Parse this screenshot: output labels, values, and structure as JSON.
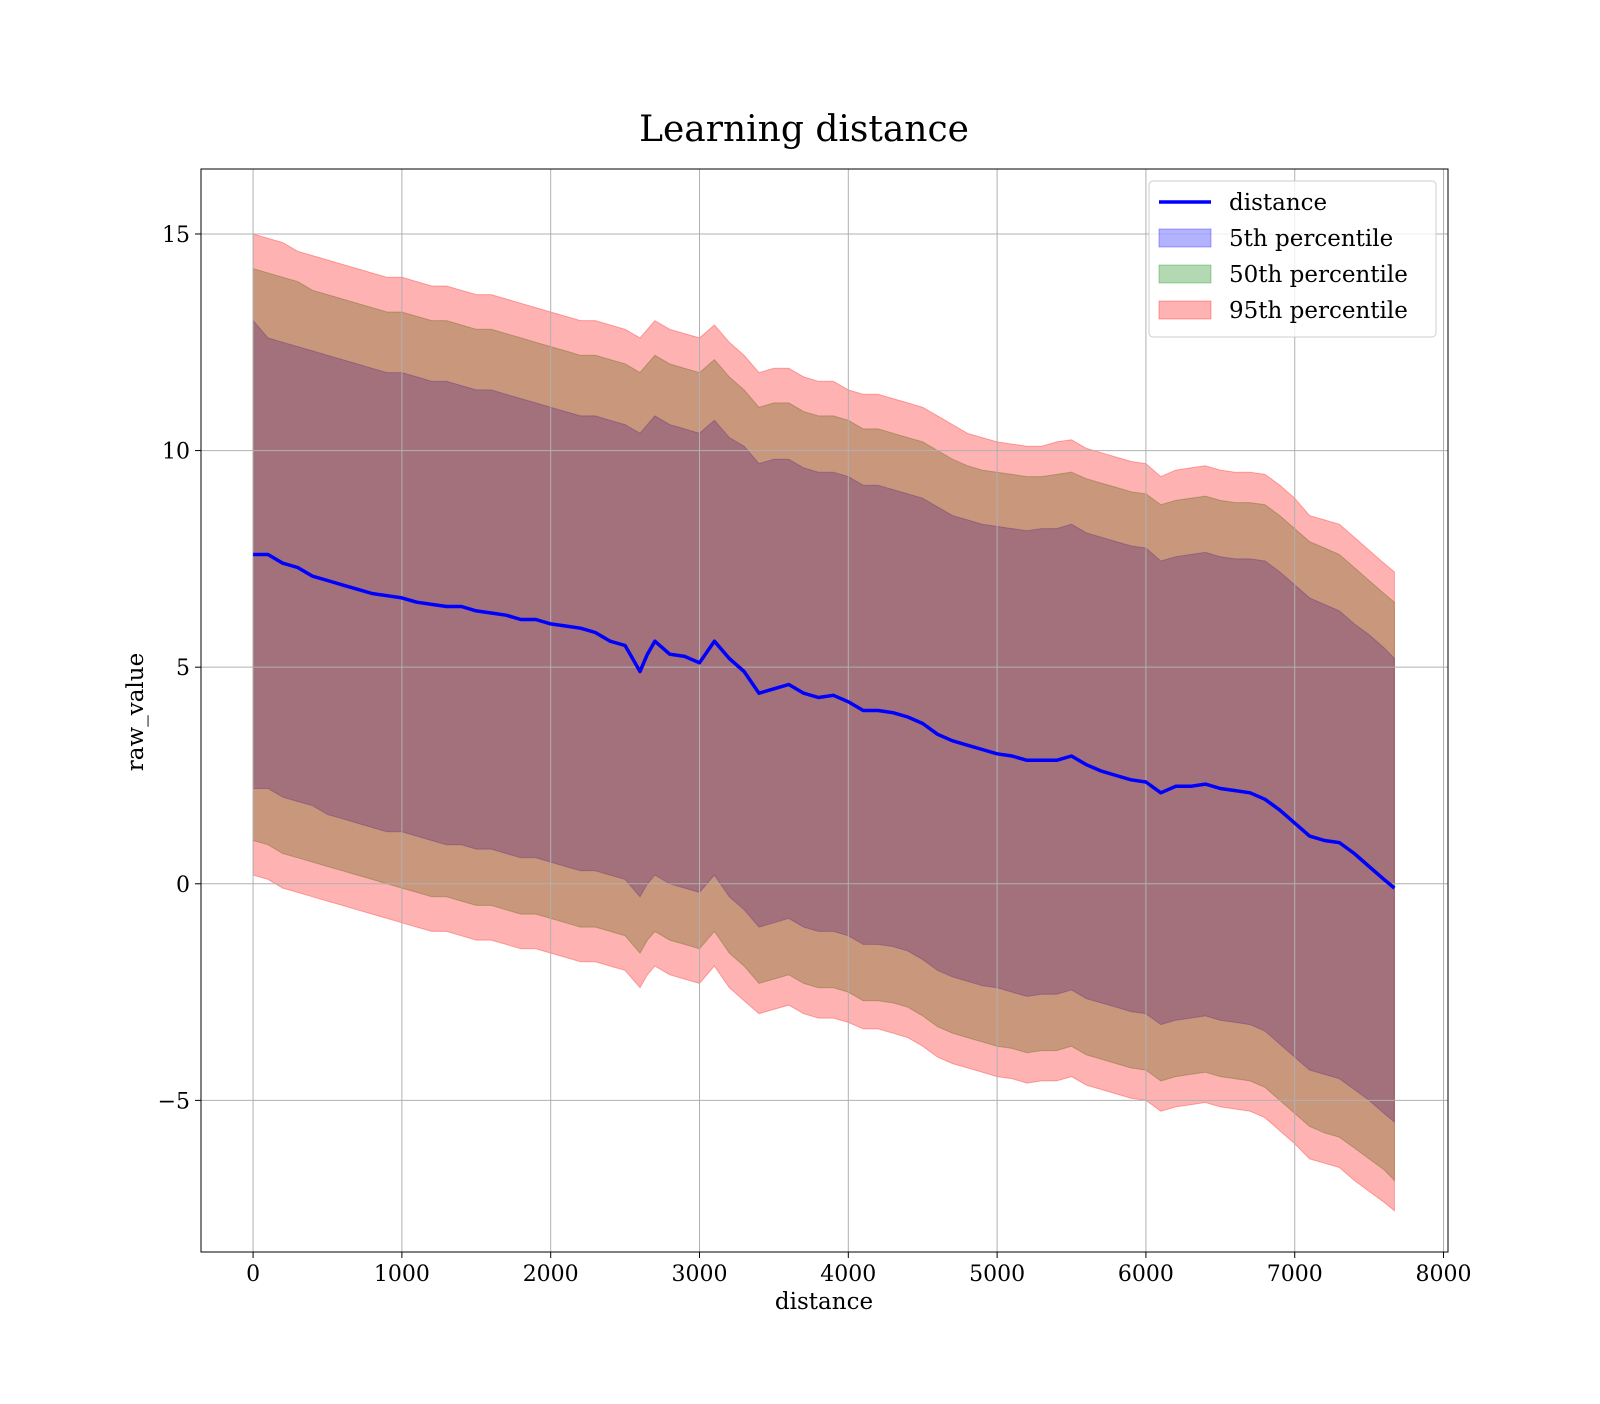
{
  "chart_data": {
    "type": "area",
    "title": "Learning distance",
    "xlabel": "distance",
    "ylabel": "raw_value",
    "xlim": [
      -350,
      8030
    ],
    "ylim": [
      -8.5,
      16.5
    ],
    "grid": true,
    "legend_position": "top-right",
    "x_ticks": [
      0,
      1000,
      2000,
      3000,
      4000,
      5000,
      6000,
      7000,
      8000
    ],
    "x_tick_labels": [
      "0",
      "1000",
      "2000",
      "3000",
      "4000",
      "5000",
      "6000",
      "7000",
      "8000"
    ],
    "y_ticks": [
      -5,
      0,
      5,
      10,
      15
    ],
    "y_tick_labels": [
      "−5",
      "0",
      "5",
      "10",
      "15"
    ],
    "x": [
      0,
      100,
      200,
      300,
      400,
      500,
      600,
      700,
      800,
      900,
      1000,
      1100,
      1200,
      1300,
      1400,
      1500,
      1600,
      1700,
      1800,
      1900,
      2000,
      2100,
      2200,
      2300,
      2400,
      2500,
      2600,
      2650,
      2700,
      2800,
      2900,
      3000,
      3100,
      3200,
      3300,
      3400,
      3500,
      3600,
      3700,
      3800,
      3900,
      4000,
      4100,
      4200,
      4300,
      4400,
      4500,
      4600,
      4700,
      4800,
      4900,
      5000,
      5100,
      5200,
      5300,
      5400,
      5500,
      5600,
      5700,
      5800,
      5900,
      6000,
      6100,
      6200,
      6300,
      6400,
      6500,
      6600,
      6700,
      6800,
      6900,
      7000,
      7100,
      7200,
      7300,
      7400,
      7500,
      7600,
      7670
    ],
    "series": [
      {
        "name": "distance",
        "type": "line",
        "color": "#0000ff",
        "values": [
          7.6,
          7.6,
          7.4,
          7.3,
          7.1,
          7.0,
          6.9,
          6.8,
          6.7,
          6.65,
          6.6,
          6.5,
          6.45,
          6.4,
          6.4,
          6.3,
          6.25,
          6.2,
          6.1,
          6.1,
          6.0,
          5.95,
          5.9,
          5.8,
          5.6,
          5.5,
          4.9,
          5.3,
          5.6,
          5.3,
          5.25,
          5.1,
          5.6,
          5.2,
          4.9,
          4.4,
          4.5,
          4.6,
          4.4,
          4.3,
          4.35,
          4.2,
          4.0,
          4.0,
          3.95,
          3.85,
          3.7,
          3.45,
          3.3,
          3.2,
          3.1,
          3.0,
          2.95,
          2.85,
          2.85,
          2.85,
          2.95,
          2.75,
          2.6,
          2.5,
          2.4,
          2.35,
          2.1,
          2.25,
          2.25,
          2.3,
          2.2,
          2.15,
          2.1,
          1.95,
          1.7,
          1.4,
          1.1,
          1.0,
          0.95,
          0.7,
          0.4,
          0.1,
          -0.1
        ]
      },
      {
        "name": "5th percentile",
        "type": "band",
        "color": "#0000ff",
        "upper": [
          13.0,
          12.6,
          12.5,
          12.4,
          12.3,
          12.2,
          12.1,
          12.0,
          11.9,
          11.8,
          11.8,
          11.7,
          11.6,
          11.6,
          11.5,
          11.4,
          11.4,
          11.3,
          11.2,
          11.1,
          11.0,
          10.9,
          10.8,
          10.8,
          10.7,
          10.6,
          10.4,
          10.6,
          10.8,
          10.6,
          10.5,
          10.4,
          10.7,
          10.3,
          10.1,
          9.7,
          9.8,
          9.8,
          9.6,
          9.5,
          9.5,
          9.4,
          9.2,
          9.2,
          9.1,
          9.0,
          8.9,
          8.7,
          8.5,
          8.4,
          8.3,
          8.25,
          8.2,
          8.15,
          8.2,
          8.2,
          8.3,
          8.1,
          8.0,
          7.9,
          7.8,
          7.75,
          7.45,
          7.55,
          7.6,
          7.65,
          7.55,
          7.5,
          7.5,
          7.45,
          7.2,
          6.9,
          6.6,
          6.45,
          6.3,
          6.0,
          5.75,
          5.45,
          5.2
        ],
        "lower": [
          2.2,
          2.2,
          2.0,
          1.9,
          1.8,
          1.6,
          1.5,
          1.4,
          1.3,
          1.2,
          1.2,
          1.1,
          1.0,
          0.9,
          0.9,
          0.8,
          0.8,
          0.7,
          0.6,
          0.6,
          0.5,
          0.4,
          0.3,
          0.3,
          0.2,
          0.1,
          -0.3,
          0.0,
          0.2,
          0.0,
          -0.1,
          -0.2,
          0.2,
          -0.3,
          -0.6,
          -1.0,
          -0.9,
          -0.8,
          -1.0,
          -1.1,
          -1.1,
          -1.2,
          -1.4,
          -1.4,
          -1.45,
          -1.55,
          -1.75,
          -2.0,
          -2.15,
          -2.25,
          -2.35,
          -2.4,
          -2.5,
          -2.6,
          -2.55,
          -2.55,
          -2.45,
          -2.65,
          -2.75,
          -2.85,
          -2.95,
          -3.0,
          -3.25,
          -3.15,
          -3.1,
          -3.05,
          -3.15,
          -3.2,
          -3.25,
          -3.4,
          -3.7,
          -4.0,
          -4.3,
          -4.4,
          -4.5,
          -4.75,
          -5.0,
          -5.3,
          -5.5
        ]
      },
      {
        "name": "50th percentile",
        "type": "band",
        "color": "#008000",
        "upper": [
          14.2,
          14.1,
          14.0,
          13.9,
          13.7,
          13.6,
          13.5,
          13.4,
          13.3,
          13.2,
          13.2,
          13.1,
          13.0,
          13.0,
          12.9,
          12.8,
          12.8,
          12.7,
          12.6,
          12.5,
          12.4,
          12.3,
          12.2,
          12.2,
          12.1,
          12.0,
          11.8,
          12.0,
          12.2,
          12.0,
          11.9,
          11.8,
          12.1,
          11.7,
          11.4,
          11.0,
          11.1,
          11.1,
          10.9,
          10.8,
          10.8,
          10.7,
          10.5,
          10.5,
          10.4,
          10.3,
          10.2,
          10.0,
          9.8,
          9.65,
          9.55,
          9.5,
          9.45,
          9.4,
          9.4,
          9.45,
          9.5,
          9.35,
          9.25,
          9.15,
          9.05,
          9.0,
          8.75,
          8.85,
          8.9,
          8.95,
          8.85,
          8.8,
          8.8,
          8.75,
          8.5,
          8.2,
          7.9,
          7.75,
          7.6,
          7.3,
          7.0,
          6.7,
          6.5
        ],
        "lower": [
          1.0,
          0.9,
          0.7,
          0.6,
          0.5,
          0.4,
          0.3,
          0.2,
          0.1,
          0.0,
          -0.1,
          -0.2,
          -0.3,
          -0.3,
          -0.4,
          -0.5,
          -0.5,
          -0.6,
          -0.7,
          -0.7,
          -0.8,
          -0.9,
          -1.0,
          -1.0,
          -1.1,
          -1.2,
          -1.6,
          -1.3,
          -1.1,
          -1.3,
          -1.4,
          -1.5,
          -1.1,
          -1.6,
          -1.9,
          -2.3,
          -2.2,
          -2.1,
          -2.3,
          -2.4,
          -2.4,
          -2.5,
          -2.7,
          -2.7,
          -2.75,
          -2.85,
          -3.05,
          -3.3,
          -3.45,
          -3.55,
          -3.65,
          -3.75,
          -3.8,
          -3.9,
          -3.85,
          -3.85,
          -3.75,
          -3.95,
          -4.05,
          -4.15,
          -4.25,
          -4.3,
          -4.55,
          -4.45,
          -4.4,
          -4.35,
          -4.45,
          -4.5,
          -4.55,
          -4.7,
          -5.0,
          -5.3,
          -5.6,
          -5.75,
          -5.85,
          -6.1,
          -6.35,
          -6.6,
          -6.85
        ]
      },
      {
        "name": "95th percentile",
        "type": "band",
        "color": "#ff0000",
        "upper": [
          15.0,
          14.9,
          14.8,
          14.6,
          14.5,
          14.4,
          14.3,
          14.2,
          14.1,
          14.0,
          14.0,
          13.9,
          13.8,
          13.8,
          13.7,
          13.6,
          13.6,
          13.5,
          13.4,
          13.3,
          13.2,
          13.1,
          13.0,
          13.0,
          12.9,
          12.8,
          12.6,
          12.8,
          13.0,
          12.8,
          12.7,
          12.6,
          12.9,
          12.5,
          12.2,
          11.8,
          11.9,
          11.9,
          11.7,
          11.6,
          11.6,
          11.4,
          11.3,
          11.3,
          11.2,
          11.1,
          11.0,
          10.8,
          10.6,
          10.4,
          10.3,
          10.2,
          10.15,
          10.1,
          10.1,
          10.2,
          10.25,
          10.05,
          9.95,
          9.85,
          9.75,
          9.7,
          9.4,
          9.55,
          9.6,
          9.65,
          9.55,
          9.5,
          9.5,
          9.45,
          9.2,
          8.9,
          8.5,
          8.4,
          8.3,
          8.0,
          7.7,
          7.4,
          7.2
        ],
        "lower": [
          0.2,
          0.1,
          -0.1,
          -0.2,
          -0.3,
          -0.4,
          -0.5,
          -0.6,
          -0.7,
          -0.8,
          -0.9,
          -1.0,
          -1.1,
          -1.1,
          -1.2,
          -1.3,
          -1.3,
          -1.4,
          -1.5,
          -1.5,
          -1.6,
          -1.7,
          -1.8,
          -1.8,
          -1.9,
          -2.0,
          -2.4,
          -2.1,
          -1.9,
          -2.1,
          -2.2,
          -2.3,
          -1.9,
          -2.4,
          -2.7,
          -3.0,
          -2.9,
          -2.8,
          -3.0,
          -3.1,
          -3.1,
          -3.2,
          -3.35,
          -3.35,
          -3.45,
          -3.55,
          -3.75,
          -4.0,
          -4.15,
          -4.25,
          -4.35,
          -4.45,
          -4.5,
          -4.6,
          -4.55,
          -4.55,
          -4.45,
          -4.65,
          -4.75,
          -4.85,
          -4.95,
          -5.0,
          -5.25,
          -5.15,
          -5.1,
          -5.05,
          -5.15,
          -5.2,
          -5.25,
          -5.4,
          -5.7,
          -6.0,
          -6.35,
          -6.45,
          -6.55,
          -6.85,
          -7.1,
          -7.35,
          -7.55
        ]
      }
    ]
  }
}
